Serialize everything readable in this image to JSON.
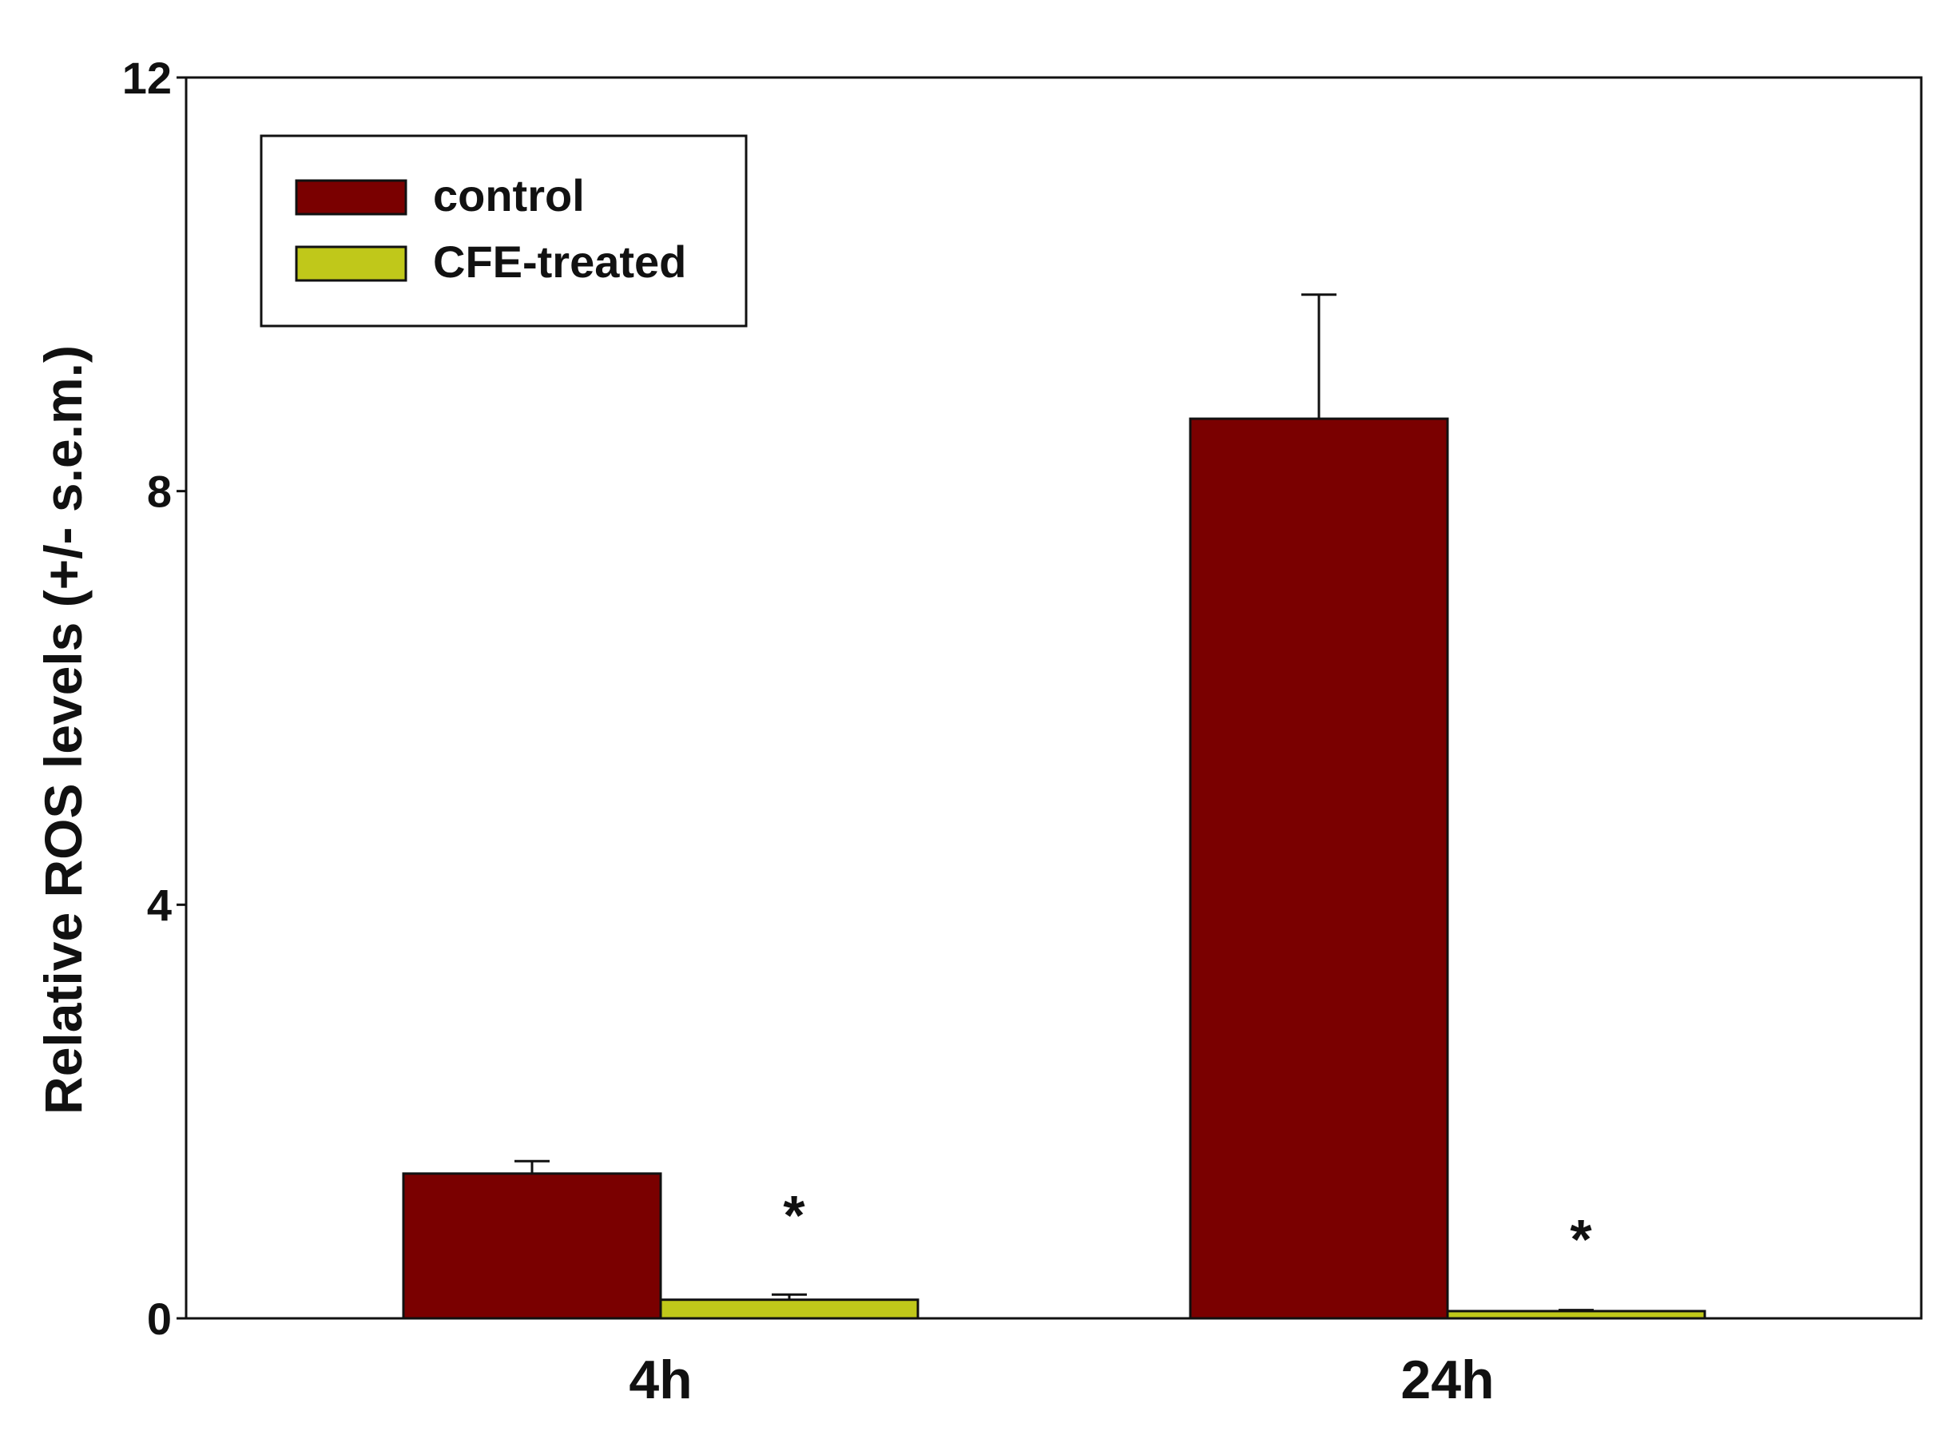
{
  "chart_data": {
    "type": "bar",
    "title": "",
    "xlabel": "",
    "ylabel": "Relative ROS levels (+/- s.e.m.)",
    "ylim": [
      0,
      12
    ],
    "yticks": [
      0,
      4,
      8,
      12
    ],
    "grid": false,
    "legend_position": "top-left",
    "categories": [
      "4h",
      "24h"
    ],
    "series": [
      {
        "name": "control",
        "color": "#7a0000",
        "values": [
          1.4,
          8.7
        ],
        "errors": [
          0.12,
          1.2
        ]
      },
      {
        "name": "CFE-treated",
        "color": "#c0c81a",
        "values": [
          0.18,
          0.07
        ],
        "errors": [
          0.05,
          0.01
        ]
      }
    ],
    "annotations": [
      {
        "category": "4h",
        "series": "CFE-treated",
        "text": "*"
      },
      {
        "category": "24h",
        "series": "CFE-treated",
        "text": "*"
      }
    ]
  }
}
